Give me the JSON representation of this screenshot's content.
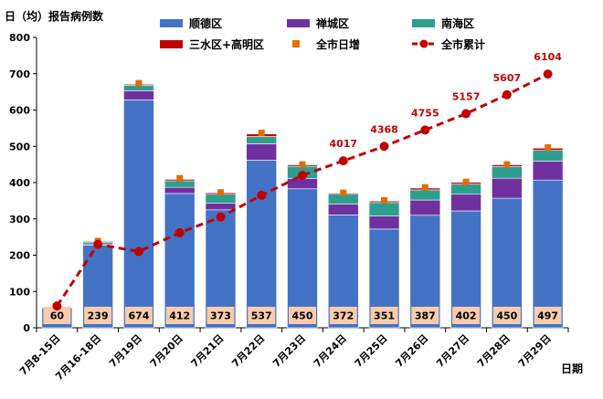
{
  "chart_data": {
    "type": "bar",
    "stacked": true,
    "ylabel": "日（均）报告病例数",
    "xlabel": "日期",
    "ylim": [
      0,
      800
    ],
    "yticks": [
      0,
      100,
      200,
      300,
      400,
      500,
      600,
      700,
      800
    ],
    "grid": false,
    "legend_position": "top",
    "categories": [
      "7月8-15日",
      "7月16-18日",
      "7月19日",
      "7月20日",
      "7月21日",
      "7月22日",
      "7月23日",
      "7月24日",
      "7月25日",
      "7月26日",
      "7月27日",
      "7月28日",
      "7月29日"
    ],
    "series": [
      {
        "name": "顺德区",
        "color": "#4472C4",
        "values": [
          55,
          228,
          628,
          370,
          325,
          462,
          383,
          311,
          272,
          310,
          322,
          357,
          407
        ]
      },
      {
        "name": "禅城区",
        "color": "#7030A0",
        "values": [
          0,
          3,
          25,
          17,
          18,
          45,
          28,
          30,
          36,
          42,
          46,
          55,
          52
        ]
      },
      {
        "name": "南海区",
        "color": "#2E9E8F",
        "values": [
          0,
          5,
          15,
          18,
          25,
          20,
          34,
          27,
          37,
          28,
          28,
          32,
          30
        ]
      },
      {
        "name": "三水区+高明区",
        "color": "#C00000",
        "values": [
          0,
          2,
          3,
          4,
          4,
          7,
          4,
          3,
          4,
          5,
          5,
          5,
          6
        ]
      }
    ],
    "daily_increase": {
      "name": "全市日增",
      "color": "#E36C09",
      "values": [
        60,
        239,
        674,
        412,
        373,
        537,
        450,
        372,
        351,
        387,
        402,
        450,
        497
      ]
    },
    "cumulative": {
      "name": "全市累计",
      "color": "#C00000",
      "values": [
        60,
        230,
        210,
        262,
        305,
        365,
        420,
        460,
        500,
        545,
        590,
        642,
        699
      ],
      "labels": [
        null,
        null,
        null,
        null,
        null,
        null,
        null,
        "4017",
        "4368",
        "4755",
        "5157",
        "5607",
        "6104"
      ]
    }
  }
}
